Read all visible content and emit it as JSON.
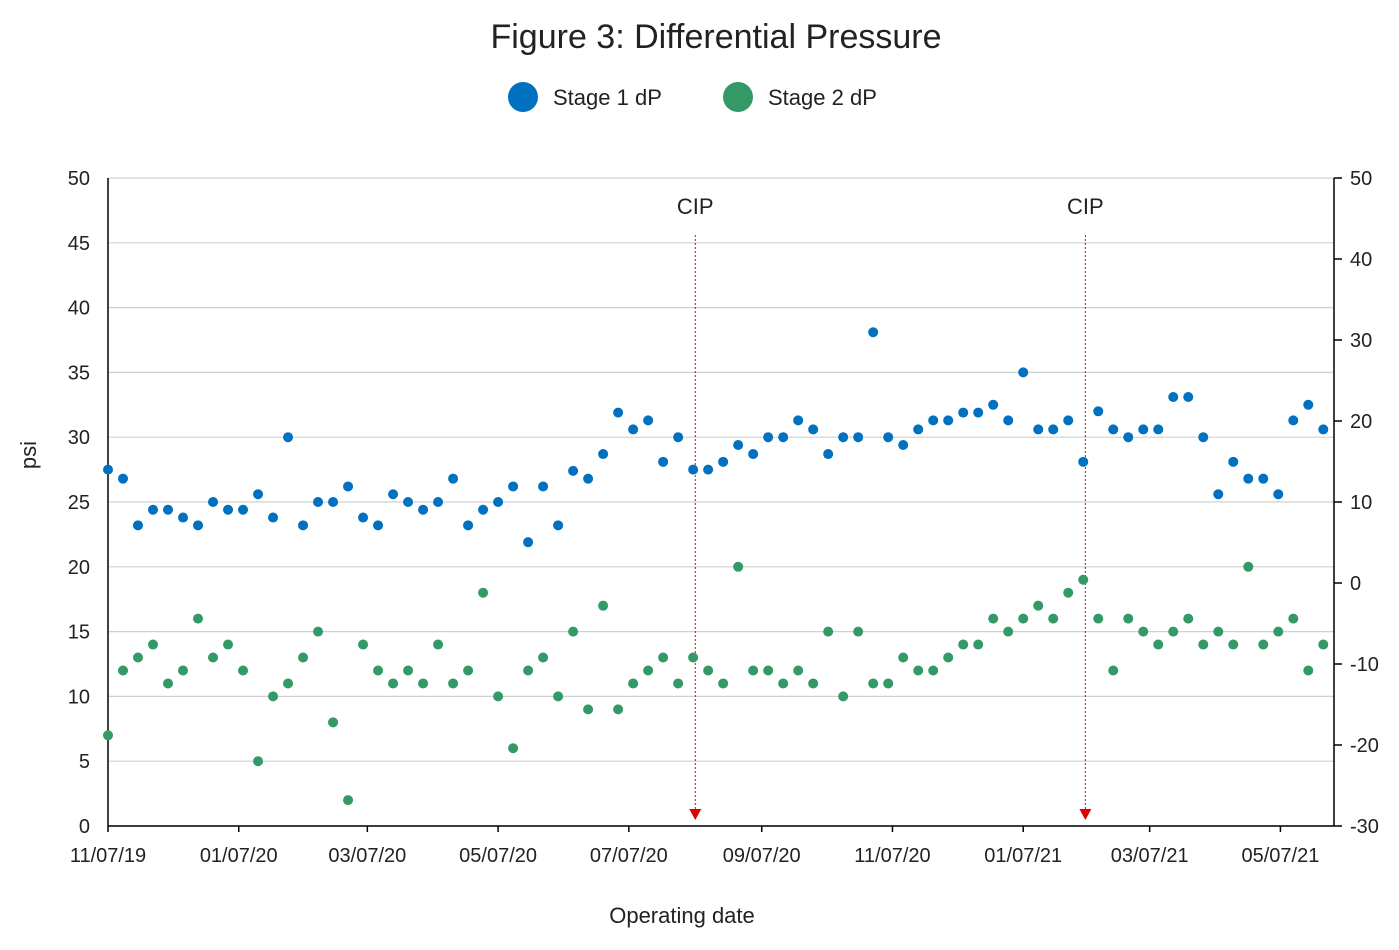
{
  "chart_data": {
    "type": "scatter",
    "title": "Figure 3: Differential Pressure",
    "xlabel": "Operating date",
    "ylabel": "psi",
    "x": [
      "11/07/19",
      "11/14/19",
      "11/21/19",
      "11/28/19",
      "12/05/19",
      "12/12/19",
      "12/19/19",
      "12/26/19",
      "01/02/20",
      "01/09/20",
      "01/16/20",
      "01/23/20",
      "01/30/20",
      "02/06/20",
      "02/13/20",
      "02/20/20",
      "02/27/20",
      "03/05/20",
      "03/12/20",
      "03/19/20",
      "03/26/20",
      "04/02/20",
      "04/09/20",
      "04/16/20",
      "04/23/20",
      "04/30/20",
      "05/07/20",
      "05/14/20",
      "05/21/20",
      "05/28/20",
      "06/04/20",
      "06/11/20",
      "06/18/20",
      "06/25/20",
      "07/02/20",
      "07/09/20",
      "07/16/20",
      "07/23/20",
      "07/30/20",
      "08/06/20",
      "08/13/20",
      "08/20/20",
      "08/27/20",
      "09/03/20",
      "09/10/20",
      "09/17/20",
      "09/24/20",
      "10/01/20",
      "10/08/20",
      "10/15/20",
      "10/22/20",
      "10/29/20",
      "11/05/20",
      "11/12/20",
      "11/19/20",
      "11/26/20",
      "12/03/20",
      "12/10/20",
      "12/17/20",
      "12/24/20",
      "12/31/20",
      "01/07/21",
      "01/14/21",
      "01/21/21",
      "01/28/21",
      "02/04/21",
      "02/11/21",
      "02/18/21",
      "02/25/21",
      "03/04/21",
      "03/11/21",
      "03/18/21",
      "03/25/21",
      "04/01/21",
      "04/08/21",
      "04/15/21",
      "04/22/21",
      "04/29/21",
      "05/06/21",
      "05/13/21",
      "05/20/21",
      "05/27/21"
    ],
    "series": [
      {
        "name": "Stage 1 dP",
        "color": "#0070c0",
        "values": [
          27.5,
          26.8,
          23.2,
          24.4,
          24.4,
          23.8,
          23.2,
          25.0,
          24.4,
          24.4,
          25.6,
          23.8,
          30.0,
          23.2,
          25.0,
          25.0,
          26.2,
          23.8,
          23.2,
          25.6,
          25.0,
          24.4,
          25.0,
          26.8,
          23.2,
          24.4,
          25.0,
          26.2,
          21.9,
          26.2,
          23.2,
          27.4,
          26.8,
          28.7,
          31.9,
          30.6,
          31.3,
          28.1,
          30.0,
          27.5,
          27.5,
          28.1,
          29.4,
          28.7,
          30.0,
          30.0,
          31.3,
          30.6,
          28.7,
          30.0,
          30.0,
          38.1,
          30.0,
          29.4,
          30.6,
          31.3,
          31.3,
          31.9,
          31.9,
          32.5,
          31.3,
          35.0,
          30.6,
          30.6,
          31.3,
          28.1,
          32.0,
          30.6,
          30.0,
          30.6,
          30.6,
          33.1,
          33.1,
          30.0,
          25.6,
          28.1,
          26.8,
          26.8,
          25.6,
          31.3,
          32.5,
          30.6
        ]
      },
      {
        "name": "Stage 2 dP",
        "color": "#339966",
        "values": [
          7,
          12,
          13,
          14,
          11,
          12,
          16,
          13,
          14,
          12,
          5,
          10,
          11,
          13,
          15,
          8,
          2,
          14,
          12,
          11,
          12,
          11,
          14,
          11,
          12,
          18,
          10,
          6,
          12,
          13,
          10,
          15,
          9,
          17,
          9,
          11,
          12,
          13,
          11,
          13,
          12,
          11,
          20,
          12,
          12,
          11,
          12,
          11,
          15,
          10,
          15,
          11,
          11,
          13,
          12,
          12,
          13,
          14,
          14,
          16,
          15,
          16,
          17,
          16,
          18,
          19,
          16,
          12,
          16,
          15,
          14,
          15,
          16,
          14,
          15,
          14,
          20,
          14,
          15,
          16,
          12,
          14
        ]
      }
    ],
    "xlim": [
      "11/07/19",
      "06/01/21"
    ],
    "xticks": [
      "11/07/19",
      "01/07/20",
      "03/07/20",
      "05/07/20",
      "07/07/20",
      "09/07/20",
      "11/07/20",
      "01/07/21",
      "03/07/21",
      "05/07/21"
    ],
    "ylim": [
      0,
      50
    ],
    "yticks": [
      0,
      5,
      10,
      15,
      20,
      25,
      30,
      35,
      40,
      45,
      50
    ],
    "y2lim": [
      -30,
      50
    ],
    "y2ticks": [
      -30,
      -20,
      -10,
      0,
      10,
      20,
      30,
      40,
      50
    ],
    "annotations": [
      {
        "text": "CIP",
        "x": "08/07/20"
      },
      {
        "text": "CIP",
        "x": "02/05/21"
      }
    ],
    "grid": true,
    "legend": "top"
  }
}
